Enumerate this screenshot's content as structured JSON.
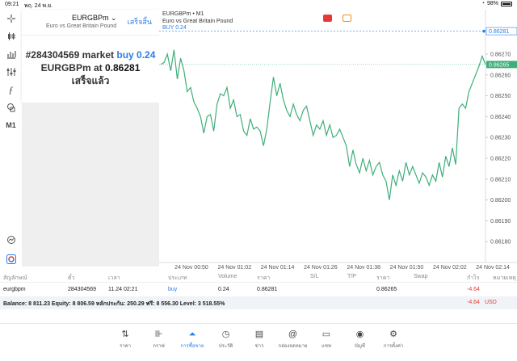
{
  "status": {
    "time": "09:21",
    "date": "พฤ. 24 พ.ย.",
    "battery": "98%"
  },
  "toolbar": [
    "crosshair-icon",
    "candles-icon",
    "bars-icon",
    "indicators-icon",
    "function-icon",
    "objects-icon"
  ],
  "timeframe": "M1",
  "toast": {
    "symbol": "EURGBPm",
    "done_label": "เสร็จสิ้น",
    "description": "Euro vs Great Britain Pound",
    "line1_prefix": "#284304569 market",
    "line1_action": "buy 0.24",
    "line2_prefix": "EURGBPm at",
    "line2_price": "0.86281",
    "line3": "เสร็จแล้ว"
  },
  "chart": {
    "title": "EURGBPm • M1",
    "subtitle": "Euro vs Great Britain Pound",
    "buy_label": "BUY 0.24",
    "buy_price": "0.86281",
    "current_price": "0.86265",
    "colors": {
      "line": "#3fae7a",
      "buy": "#2b7de9",
      "current": "#3fae7a"
    }
  },
  "chart_data": {
    "type": "line",
    "title": "",
    "xlabel": "",
    "ylabel": "",
    "ylim": [
      0.8617,
      0.86282
    ],
    "x_ticks": [
      "24 Nov 00:50",
      "24 Nov 01:02",
      "24 Nov 01:14",
      "24 Nov 01:26",
      "24 Nov 01:38",
      "24 Nov 01:50",
      "24 Nov 02:02",
      "24 Nov 02:14"
    ],
    "y_ticks": [
      "0.86270",
      "0.86260",
      "0.86250",
      "0.86240",
      "0.86230",
      "0.86220",
      "0.86210",
      "0.86200",
      "0.86190",
      "0.86180"
    ],
    "series": [
      {
        "values": [
          0.86265,
          0.86266,
          0.8627,
          0.86262,
          0.86272,
          0.86258,
          0.86268,
          0.86262,
          0.86252,
          0.86254,
          0.86247,
          0.86244,
          0.8624,
          0.86232,
          0.8624,
          0.86241,
          0.86233,
          0.86246,
          0.86251,
          0.8625,
          0.86254,
          0.86244,
          0.86248,
          0.8624,
          0.86241,
          0.86233,
          0.86231,
          0.86239,
          0.86234,
          0.86235,
          0.86233,
          0.86226,
          0.86234,
          0.86247,
          0.86259,
          0.8625,
          0.86256,
          0.86248,
          0.86243,
          0.8624,
          0.86246,
          0.86241,
          0.86238,
          0.86243,
          0.86245,
          0.86238,
          0.86231,
          0.86236,
          0.86234,
          0.86238,
          0.86231,
          0.86236,
          0.8623,
          0.86231,
          0.86234,
          0.8623,
          0.86226,
          0.86216,
          0.86224,
          0.86217,
          0.86213,
          0.8622,
          0.86214,
          0.86219,
          0.86212,
          0.86216,
          0.86218,
          0.86212,
          0.86209,
          0.862,
          0.86212,
          0.86207,
          0.86214,
          0.86209,
          0.86218,
          0.86212,
          0.86216,
          0.86212,
          0.86208,
          0.86213,
          0.86211,
          0.86207,
          0.86212,
          0.86209,
          0.86218,
          0.86211,
          0.86221,
          0.86216,
          0.86225,
          0.86217,
          0.86244,
          0.86246,
          0.86244,
          0.86252,
          0.86256,
          0.8626,
          0.86264,
          0.86269,
          0.86265
        ]
      }
    ]
  },
  "orders": {
    "headers": [
      "สัญลักษณ์",
      "ตั๋ว",
      "เวลา",
      "ประเภท",
      "Volume",
      "ราคา",
      "S/L",
      "T/P",
      "ราคา",
      "Swap",
      "กำไร",
      "หมายเหตุ"
    ],
    "row": [
      "eurgbpm",
      "284304569",
      "11.24 02:21",
      "buy",
      "0.24",
      "0.86281",
      "",
      "",
      "0.86265",
      "",
      "-4.64",
      ""
    ],
    "balance": "Balance: 8 811.23 Equity: 8 806.59 หลักประกัน: 250.29 ฟรี: 8 556.30 Level: 3 518.55%",
    "total": "-4.64",
    "currency": "USD",
    "colors": {
      "buy": "#2b7de9",
      "loss": "#e53935"
    }
  },
  "nav": [
    {
      "label": "ราคา",
      "icon": "quotes-icon"
    },
    {
      "label": "กราฟ",
      "icon": "chart-icon"
    },
    {
      "label": "การซื้อขาย",
      "icon": "trade-icon"
    },
    {
      "label": "ประวัติ",
      "icon": "history-icon"
    },
    {
      "label": "ข่าว",
      "icon": "news-icon"
    },
    {
      "label": "กล่องจดหมาย",
      "icon": "mailbox-icon"
    },
    {
      "label": "แชท",
      "icon": "chat-icon"
    },
    {
      "label": "บัญชี",
      "icon": "account-icon"
    },
    {
      "label": "การตั้งค่า",
      "icon": "settings-icon"
    }
  ]
}
